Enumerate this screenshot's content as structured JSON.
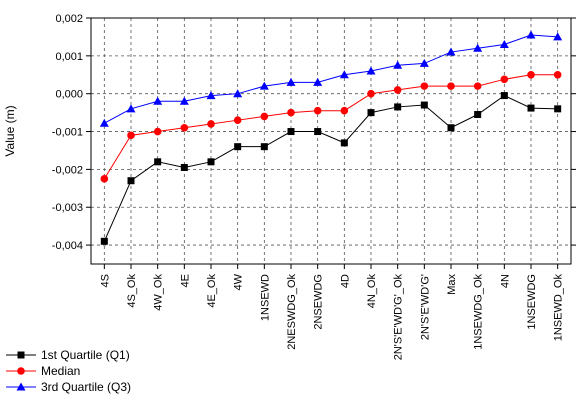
{
  "chart_data": {
    "type": "line",
    "title": "",
    "xlabel": "",
    "ylabel": "Value (m)",
    "ylim": [
      -0.0045,
      0.002
    ],
    "yticks": [
      0.002,
      0.001,
      0.0,
      -0.001,
      -0.002,
      -0.003,
      -0.004
    ],
    "ytick_labels": [
      "0,002",
      "0,001",
      "0,000",
      "-0,001",
      "-0,002",
      "-0,003",
      "-0,004"
    ],
    "grid": true,
    "legend_position": "bottom-left",
    "categories": [
      "4S",
      "4S_Ok",
      "4W_Ok",
      "4E",
      "4E_Ok",
      "4W",
      "1NSEWD",
      "2NESWDG_Ok",
      "2NSEWDG",
      "4D",
      "4N_Ok",
      "2N'S'E'WD'G'_Ok",
      "2N'S'E'WD'G'",
      "Max",
      "1NSEWDG_Ok",
      "4N",
      "1NSEWDG",
      "1NSEWD_Ok"
    ],
    "series": [
      {
        "name": "1st Quartile (Q1)",
        "color": "#000000",
        "marker": "square",
        "values": [
          -0.0039,
          -0.0023,
          -0.0018,
          -0.00195,
          -0.0018,
          -0.0014,
          -0.0014,
          -0.001,
          -0.001,
          -0.0013,
          -0.0005,
          -0.00035,
          -0.0003,
          -0.0009,
          -0.00055,
          -5e-05,
          -0.00038,
          -0.0004
        ]
      },
      {
        "name": "Median",
        "color": "#ff0000",
        "marker": "circle",
        "values": [
          -0.00225,
          -0.0011,
          -0.001,
          -0.0009,
          -0.0008,
          -0.0007,
          -0.0006,
          -0.0005,
          -0.00045,
          -0.00045,
          0.0,
          0.0001,
          0.0002,
          0.0002,
          0.0002,
          0.00038,
          0.0005,
          0.0005
        ]
      },
      {
        "name": "3rd Quartile (Q3)",
        "color": "#0000ff",
        "marker": "triangle",
        "values": [
          -0.00078,
          -0.0004,
          -0.0002,
          -0.0002,
          -5e-05,
          0.0,
          0.0002,
          0.0003,
          0.0003,
          0.0005,
          0.0006,
          0.00075,
          0.0008,
          0.0011,
          0.0012,
          0.0013,
          0.00155,
          0.0015
        ]
      }
    ]
  }
}
